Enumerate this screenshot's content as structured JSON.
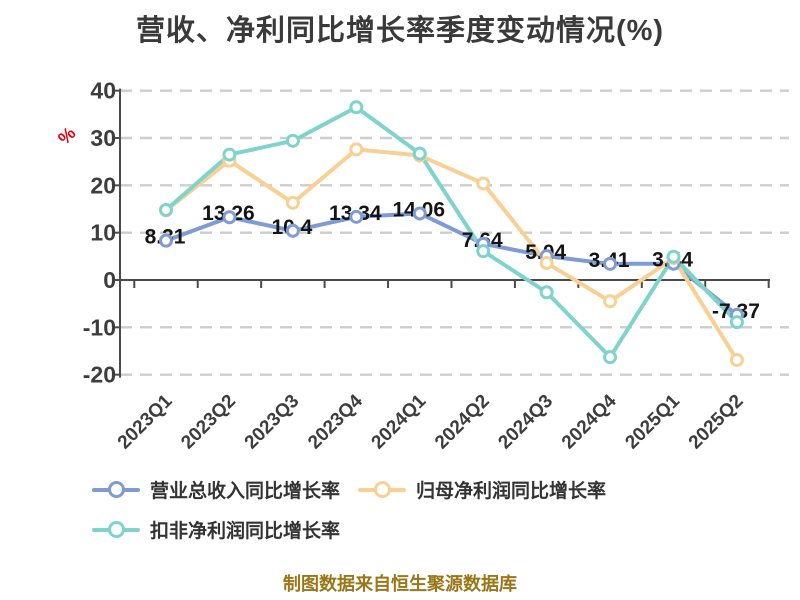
{
  "chart_data": {
    "type": "line",
    "title": "营收、净利同比增长率季度变动情况(%)",
    "y_axis_name": "%",
    "xlabel": "",
    "ylabel": "%",
    "ylim": [
      -20,
      40
    ],
    "y_ticks": [
      40,
      30,
      20,
      10,
      0,
      -10,
      -20
    ],
    "grid": "horizontal-dashed",
    "legend_position": "bottom-left",
    "marker_style": "circle-white-fill",
    "categories": [
      "2023Q1",
      "2023Q2",
      "2023Q3",
      "2023Q4",
      "2024Q1",
      "2024Q2",
      "2024Q3",
      "2024Q4",
      "2025Q1",
      "2025Q2"
    ],
    "series": [
      {
        "name": "营业总收入同比增长率",
        "color": "#7e9cd3",
        "values": [
          8.31,
          13.26,
          10.4,
          13.34,
          14.06,
          7.64,
          5.04,
          3.41,
          3.44,
          -7.37
        ],
        "point_labels": [
          "8.31",
          "13.26",
          "10.4",
          "13.34",
          "14.06",
          "7.64",
          "5.04",
          "3.41",
          "3.44",
          "-7.37"
        ]
      },
      {
        "name": "归母净利润同比增长率",
        "color": "#f9d094",
        "values": [
          14.7,
          25.2,
          16.3,
          27.6,
          26.3,
          20.4,
          3.6,
          -4.5,
          4.6,
          -16.9
        ],
        "point_labels": []
      },
      {
        "name": "扣非净利润同比增长率",
        "color": "#7fd3cd",
        "values": [
          14.8,
          26.5,
          29.4,
          36.5,
          26.7,
          6.1,
          -2.6,
          -16.3,
          4.9,
          -8.9
        ],
        "point_labels": []
      }
    ]
  },
  "style_colors": {
    "title": "#3a3a3a",
    "axis_line": "#4a4a4a",
    "gridline": "#cdcdcd",
    "tick_label": "#3d3d3d",
    "data_label": "#141414",
    "y_axis_name": "#e60012",
    "legend_text": "#333333",
    "caption_text": "#997719",
    "background": "#ffffff"
  },
  "footer": {
    "caption": "制图数据来自恒生聚源数据库"
  }
}
